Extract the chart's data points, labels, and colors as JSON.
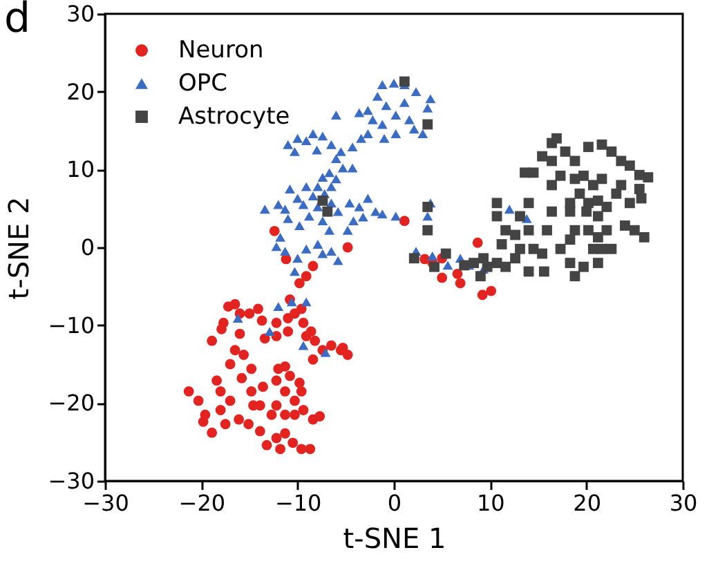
{
  "chart_data": {
    "type": "scatter",
    "title": "d",
    "xlabel": "t-SNE 1",
    "ylabel": "t-SNE 2",
    "xlim": [
      -30,
      30
    ],
    "ylim": [
      -30,
      30
    ],
    "xticks": [
      -30,
      -20,
      -10,
      0,
      10,
      20,
      30
    ],
    "yticks": [
      -30,
      -20,
      -10,
      0,
      10,
      20,
      30
    ],
    "legend": "top left",
    "series": [
      {
        "name": "Neuron",
        "color": "#e32320",
        "marker": "circle",
        "x": [
          1.1,
          -12.4,
          -4.8,
          -11.2,
          -8.4,
          -9.1,
          -9.8,
          -10.8,
          3.2,
          4,
          5,
          6.6,
          6.9,
          8.7,
          9.2,
          10.1,
          5,
          -17.2,
          -16.5,
          -16,
          -15,
          -14.1,
          -17.7,
          -17.9,
          -13.7,
          -12.2,
          -11,
          -10.3,
          -9.6,
          -9.4,
          -8.6,
          -8.2,
          -7.4,
          -6.5,
          -5.5,
          -4.8,
          -5.3,
          -8.4,
          -9.1,
          -18.9,
          -16.5,
          -15.6,
          -17,
          -14.8,
          -15.8,
          -18.4,
          -13.6,
          -18,
          -14.8,
          -17,
          -14.6,
          -12.2,
          -10.8,
          -9.8,
          -11.3,
          -10.3,
          -12.2,
          -11.3,
          -9.4,
          -8.4,
          -7.7,
          -21.3,
          -20.3,
          -19.6,
          -19.8,
          -18.9,
          -17.5,
          -16.1,
          -15.1,
          -13.9,
          -13.2,
          -12.2,
          -11.3,
          -11.8,
          -10.5,
          -9.6,
          -8.7,
          -12.7,
          -18,
          -16,
          -12.2,
          -11,
          -13.4,
          -13.9,
          -10.3,
          -12,
          -11.3,
          -9.6
        ],
        "values": [
          3.4,
          2.1,
          0,
          -1.5,
          -2.4,
          -3.7,
          -4.6,
          -6.7,
          -1.5,
          -2,
          -3.9,
          -3.4,
          -4.6,
          0.6,
          -6.1,
          -5.6,
          -1.4,
          -7.6,
          -7.3,
          -8.5,
          -8.5,
          -7.9,
          -9.7,
          -10.5,
          -9.4,
          -9.7,
          -9.1,
          -8.5,
          -7.9,
          -9.7,
          -10.8,
          -12,
          -13.2,
          -12.6,
          -13.2,
          -13.8,
          -12.9,
          -14.4,
          -11.4,
          -12,
          -13.2,
          -13.8,
          -15,
          -15.6,
          -16.8,
          -17.1,
          -17.9,
          -18.5,
          -18.5,
          -19.7,
          -20.3,
          -17.1,
          -16.5,
          -17.4,
          -18.5,
          -19.7,
          -20.3,
          -21.5,
          -20.9,
          -22.1,
          -21.7,
          -18.5,
          -19.7,
          -21.5,
          -22.4,
          -23.8,
          -22.7,
          -22.1,
          -22.7,
          -23.6,
          -25.4,
          -24.5,
          -23.9,
          -25.9,
          -25.1,
          -25.9,
          -25.9,
          -21.5,
          -20.9,
          -11.1,
          -11.4,
          -10.8,
          -11.7,
          -20.3,
          -21.5,
          -15.6,
          -15.3,
          -18.5
        ]
      },
      {
        "name": "OPC",
        "color": "#3a6cc4",
        "marker": "triangle",
        "x": [
          -1.2,
          0,
          1.1,
          2.3,
          3.8,
          3.5,
          -2.7,
          -3.6,
          -1.7,
          -0.8,
          -2.2,
          -1.2,
          0.2,
          1.1,
          1.6,
          0.2,
          -1,
          -2.7,
          -3.4,
          2.1,
          3,
          -4.3,
          -6,
          -11,
          -10,
          -9.1,
          -8.4,
          -7.4,
          -6.5,
          -10.3,
          -8,
          -5.5,
          -6,
          -4.3,
          -5.3,
          -6.7,
          -7.4,
          -6,
          -6.5,
          -7.9,
          -9.1,
          -10.8,
          -8.4,
          -7.2,
          -10,
          -9.4,
          -7.9,
          -6.5,
          -5.8,
          -4.6,
          -3.6,
          -2.7,
          -1.9,
          -1.2,
          0.2,
          -3.2,
          -4.2,
          -4.8,
          -12,
          -13.4,
          -11.3,
          -11,
          -9.8,
          -8.8,
          -7.4,
          -6.7,
          -11.8,
          -12.2,
          -11.3,
          -10,
          -9.1,
          -7.9,
          -7.4,
          -6.5,
          -5.8,
          -10.3,
          -12,
          -10.6,
          -9.1,
          -16.2,
          -12.9,
          -9.4,
          -7.1,
          3.8,
          3.5,
          2.3,
          5.6,
          6.9,
          7.8,
          9.3,
          12,
          13.8,
          4
        ],
        "values": [
          20.9,
          21.1,
          20.9,
          20,
          19.1,
          17.9,
          17.6,
          17.3,
          19.4,
          18.2,
          16.4,
          15.8,
          17,
          18.6,
          16.4,
          14.6,
          14,
          14.6,
          14,
          15.2,
          14.6,
          12.9,
          17,
          13.2,
          14,
          13.7,
          14.6,
          14.3,
          13.2,
          12.3,
          12.5,
          12.3,
          11.4,
          10.2,
          10.2,
          9.6,
          9,
          8.8,
          7.8,
          7.8,
          7.8,
          7.5,
          6.6,
          6.9,
          6.3,
          5.5,
          5.2,
          5.7,
          4.6,
          5.7,
          5.2,
          6.3,
          4.6,
          4.3,
          4,
          3.9,
          3.4,
          2.2,
          5.5,
          4.9,
          4.9,
          3.7,
          2.8,
          4,
          3.4,
          2.2,
          1.3,
          0.1,
          -0.5,
          -1.4,
          -0.2,
          0.4,
          -0.8,
          -0.5,
          -1.7,
          -3.1,
          -7.6,
          -7,
          -7,
          -9.1,
          -10.8,
          -12.6,
          -13.5,
          5.7,
          4,
          -0.5,
          -2.3,
          -1.4,
          -2.3,
          -2.8,
          4.9,
          3.7,
          -1.1
        ]
      },
      {
        "name": "Astrocyte",
        "color": "#444444",
        "marker": "square",
        "x": [
          1.1,
          3.5,
          -7.4,
          -6.9,
          3.5,
          3.5,
          2.1,
          4.2,
          5.4,
          7.3,
          8.3,
          9,
          9.7,
          10.7,
          11.6,
          10.7,
          10.7,
          11.6,
          11.2,
          12.6,
          13.1,
          14,
          14,
          13.1,
          13.6,
          14.5,
          15.4,
          16.4,
          16.9,
          16.4,
          17.8,
          18.8,
          20.2,
          21.6,
          22.6,
          23.6,
          24.5,
          25.5,
          26.4,
          25.5,
          25.7,
          24.5,
          23.1,
          22.1,
          21.2,
          20.2,
          21.2,
          22.1,
          24,
          25,
          26,
          19.3,
          18.3,
          18.3,
          18.8,
          17.3,
          18.3,
          18.8,
          19.7,
          21.2,
          21.6,
          20.7,
          16.4,
          15.9,
          15.4,
          15.6,
          14,
          12.6,
          20.7,
          21.6,
          23.6,
          20.2,
          16.4,
          17.3,
          18.8,
          19.7,
          18.3,
          22.6,
          20,
          21.2,
          14.5,
          9.3
        ],
        "values": [
          21.3,
          15.8,
          6,
          4.6,
          5.2,
          2.2,
          -1.4,
          -2.5,
          -0.8,
          -2.3,
          -2,
          -3.7,
          -2.5,
          -2,
          -2.5,
          5.7,
          4,
          2.2,
          0.4,
          1.6,
          -0.2,
          2.2,
          5.7,
          4,
          9.6,
          9.6,
          11.7,
          13.4,
          14,
          11.1,
          12.3,
          11.1,
          12.9,
          13.2,
          12.3,
          11.1,
          10.5,
          9.3,
          9,
          7.5,
          6.3,
          5.7,
          6.9,
          5.2,
          4,
          2.2,
          1.3,
          2.2,
          2.8,
          2.2,
          1.3,
          6.9,
          5.7,
          4.6,
          2.2,
          -0.2,
          -2,
          -3.7,
          -2.5,
          -2,
          -0.2,
          -0.2,
          4.6,
          2.2,
          -0.8,
          -3.1,
          -3.1,
          -1.4,
          8,
          8.8,
          8,
          5.7,
          8,
          9.2,
          8.8,
          9.2,
          1,
          -0.2,
          4.6,
          6,
          -0.2,
          -1.4
        ]
      }
    ]
  }
}
